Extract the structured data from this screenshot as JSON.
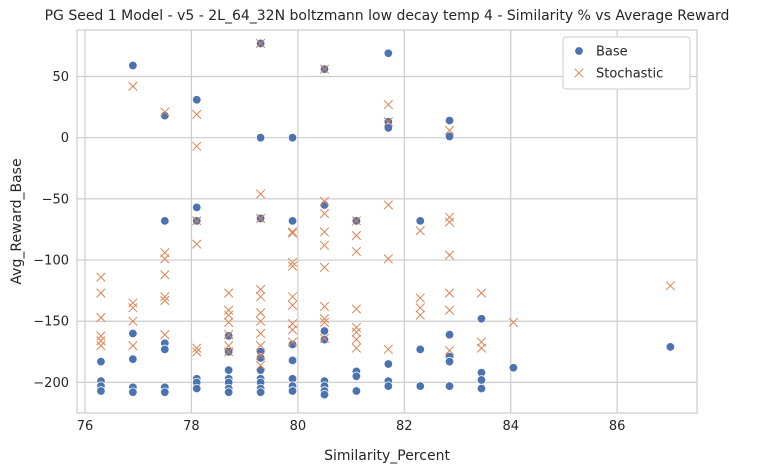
{
  "chart_data": {
    "type": "scatter",
    "title": "PG Seed 1 Model - v5 - 2L_64_32N boltzmann low decay temp 4 - Similarity % vs Average Reward",
    "xlabel": "Similarity_Percent",
    "ylabel": "Avg_Reward_Base",
    "xlim": [
      75.85,
      87.5
    ],
    "ylim": [
      -225,
      88
    ],
    "xticks": [
      76,
      78,
      80,
      82,
      84,
      86
    ],
    "yticks": [
      -200,
      -150,
      -100,
      -50,
      0,
      50
    ],
    "grid": true,
    "legend_position": "top-right",
    "colors": {
      "Base": "#4c72b0",
      "Stochastic": "#dd8452"
    },
    "series": [
      {
        "name": "Base",
        "marker": "circle",
        "points": [
          [
            76.3,
            -183
          ],
          [
            76.3,
            -199
          ],
          [
            76.3,
            -203
          ],
          [
            76.3,
            -207
          ],
          [
            76.9,
            59
          ],
          [
            76.9,
            -160
          ],
          [
            76.9,
            -181
          ],
          [
            76.9,
            -204
          ],
          [
            76.9,
            -208
          ],
          [
            77.5,
            18
          ],
          [
            77.5,
            -68
          ],
          [
            77.5,
            -168
          ],
          [
            77.5,
            -173
          ],
          [
            77.5,
            -204
          ],
          [
            77.5,
            -208
          ],
          [
            78.1,
            31
          ],
          [
            78.1,
            -57
          ],
          [
            78.1,
            -68
          ],
          [
            78.1,
            -197
          ],
          [
            78.1,
            -200
          ],
          [
            78.1,
            -205
          ],
          [
            78.7,
            -162
          ],
          [
            78.7,
            -175
          ],
          [
            78.7,
            -190
          ],
          [
            78.7,
            -197
          ],
          [
            78.7,
            -200
          ],
          [
            78.7,
            -205
          ],
          [
            78.7,
            -208
          ],
          [
            79.3,
            77
          ],
          [
            79.3,
            0
          ],
          [
            79.3,
            -66
          ],
          [
            79.3,
            -175
          ],
          [
            79.3,
            -180
          ],
          [
            79.3,
            -190
          ],
          [
            79.3,
            -197
          ],
          [
            79.3,
            -200
          ],
          [
            79.3,
            -205
          ],
          [
            79.3,
            -208
          ],
          [
            79.9,
            0
          ],
          [
            79.9,
            -68
          ],
          [
            79.9,
            -169
          ],
          [
            79.9,
            -182
          ],
          [
            79.9,
            -197
          ],
          [
            79.9,
            -203
          ],
          [
            79.9,
            -207
          ],
          [
            80.5,
            56
          ],
          [
            80.5,
            -55
          ],
          [
            80.5,
            -158
          ],
          [
            80.5,
            -165
          ],
          [
            80.5,
            -199
          ],
          [
            80.5,
            -203
          ],
          [
            80.5,
            -207
          ],
          [
            80.5,
            -210
          ],
          [
            81.1,
            -68
          ],
          [
            81.1,
            -191
          ],
          [
            81.1,
            -195
          ],
          [
            81.1,
            -207
          ],
          [
            81.7,
            69
          ],
          [
            81.7,
            13
          ],
          [
            81.7,
            8
          ],
          [
            81.7,
            -185
          ],
          [
            81.7,
            -199
          ],
          [
            81.7,
            -203
          ],
          [
            82.3,
            -68
          ],
          [
            82.3,
            -173
          ],
          [
            82.3,
            -203
          ],
          [
            82.85,
            14
          ],
          [
            82.85,
            1
          ],
          [
            82.85,
            -161
          ],
          [
            82.85,
            -179
          ],
          [
            82.85,
            -183
          ],
          [
            82.85,
            -203
          ],
          [
            83.45,
            -148
          ],
          [
            83.45,
            -192
          ],
          [
            83.45,
            -198
          ],
          [
            83.45,
            -205
          ],
          [
            84.05,
            -188
          ],
          [
            87.0,
            -171
          ]
        ]
      },
      {
        "name": "Stochastic",
        "marker": "x",
        "points": [
          [
            76.3,
            -114
          ],
          [
            76.3,
            -127
          ],
          [
            76.3,
            -147
          ],
          [
            76.3,
            -162
          ],
          [
            76.3,
            -166
          ],
          [
            76.3,
            -170
          ],
          [
            76.9,
            42
          ],
          [
            76.9,
            -135
          ],
          [
            76.9,
            -139
          ],
          [
            76.9,
            -150
          ],
          [
            76.9,
            -170
          ],
          [
            77.5,
            21
          ],
          [
            77.5,
            -94
          ],
          [
            77.5,
            -99
          ],
          [
            77.5,
            -112
          ],
          [
            77.5,
            -130
          ],
          [
            77.5,
            -133
          ],
          [
            77.5,
            -161
          ],
          [
            78.1,
            19
          ],
          [
            78.1,
            -7
          ],
          [
            78.1,
            -68
          ],
          [
            78.1,
            -87
          ],
          [
            78.1,
            -172
          ],
          [
            78.1,
            -175
          ],
          [
            78.7,
            -127
          ],
          [
            78.7,
            -141
          ],
          [
            78.7,
            -145
          ],
          [
            78.7,
            -151
          ],
          [
            78.7,
            -161
          ],
          [
            78.7,
            -170
          ],
          [
            78.7,
            -175
          ],
          [
            79.3,
            77
          ],
          [
            79.3,
            -46
          ],
          [
            79.3,
            -66
          ],
          [
            79.3,
            -124
          ],
          [
            79.3,
            -130
          ],
          [
            79.3,
            -143
          ],
          [
            79.3,
            -150
          ],
          [
            79.3,
            -160
          ],
          [
            79.3,
            -170
          ],
          [
            79.3,
            -178
          ],
          [
            79.3,
            -186
          ],
          [
            79.9,
            -77
          ],
          [
            79.9,
            -78
          ],
          [
            79.9,
            -102
          ],
          [
            79.9,
            -105
          ],
          [
            79.9,
            -130
          ],
          [
            79.9,
            -137
          ],
          [
            79.9,
            -152
          ],
          [
            79.9,
            -157
          ],
          [
            79.9,
            -167
          ],
          [
            80.5,
            56
          ],
          [
            80.5,
            -52
          ],
          [
            80.5,
            -62
          ],
          [
            80.5,
            -77
          ],
          [
            80.5,
            -88
          ],
          [
            80.5,
            -106
          ],
          [
            80.5,
            -138
          ],
          [
            80.5,
            -148
          ],
          [
            80.5,
            -151
          ],
          [
            80.5,
            -164
          ],
          [
            81.1,
            -68
          ],
          [
            81.1,
            -80
          ],
          [
            81.1,
            -93
          ],
          [
            81.1,
            -140
          ],
          [
            81.1,
            -155
          ],
          [
            81.1,
            -159
          ],
          [
            81.1,
            -165
          ],
          [
            81.1,
            -172
          ],
          [
            81.7,
            27
          ],
          [
            81.7,
            13
          ],
          [
            81.7,
            -55
          ],
          [
            81.7,
            -99
          ],
          [
            81.7,
            -173
          ],
          [
            82.3,
            -76
          ],
          [
            82.3,
            -131
          ],
          [
            82.3,
            -139
          ],
          [
            82.3,
            -145
          ],
          [
            82.85,
            6
          ],
          [
            82.85,
            -65
          ],
          [
            82.85,
            -69
          ],
          [
            82.85,
            -96
          ],
          [
            82.85,
            -127
          ],
          [
            82.85,
            -141
          ],
          [
            82.85,
            -174
          ],
          [
            83.45,
            -127
          ],
          [
            83.45,
            -167
          ],
          [
            83.45,
            -172
          ],
          [
            84.05,
            -151
          ],
          [
            87.0,
            -121
          ]
        ]
      }
    ]
  }
}
